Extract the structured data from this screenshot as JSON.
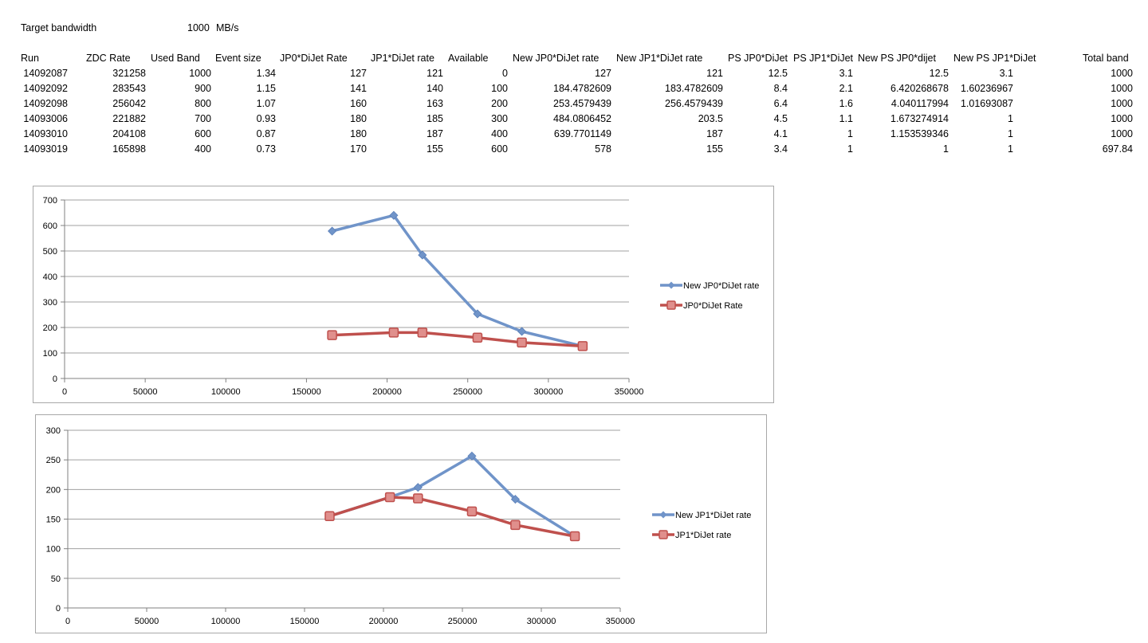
{
  "header": {
    "target_label": "Target bandwidth",
    "target_value": "1000",
    "target_unit": "MB/s"
  },
  "table": {
    "columns": [
      "Run",
      "ZDC Rate",
      "Used Band",
      "Event size",
      "JP0*DiJet Rate",
      "JP1*DiJet rate",
      "Available",
      "New JP0*DiJet rate",
      "New JP1*DiJet rate",
      "PS JP0*DiJet",
      "PS JP1*DiJet",
      "New PS JP0*dijet",
      "New PS JP1*DiJet",
      "Total band"
    ],
    "rows": [
      [
        "14092087",
        "321258",
        "1000",
        "1.34",
        "127",
        "121",
        "0",
        "127",
        "121",
        "12.5",
        "3.1",
        "12.5",
        "3.1",
        "1000"
      ],
      [
        "14092092",
        "283543",
        "900",
        "1.15",
        "141",
        "140",
        "100",
        "184.4782609",
        "183.4782609",
        "8.4",
        "2.1",
        "6.420268678",
        "1.60236967",
        "1000"
      ],
      [
        "14092098",
        "256042",
        "800",
        "1.07",
        "160",
        "163",
        "200",
        "253.4579439",
        "256.4579439",
        "6.4",
        "1.6",
        "4.040117994",
        "1.01693087",
        "1000"
      ],
      [
        "14093006",
        "221882",
        "700",
        "0.93",
        "180",
        "185",
        "300",
        "484.0806452",
        "203.5",
        "4.5",
        "1.1",
        "1.673274914",
        "1",
        "1000"
      ],
      [
        "14093010",
        "204108",
        "600",
        "0.87",
        "180",
        "187",
        "400",
        "639.7701149",
        "187",
        "4.1",
        "1",
        "1.153539346",
        "1",
        "1000"
      ],
      [
        "14093019",
        "165898",
        "400",
        "0.73",
        "170",
        "155",
        "600",
        "578",
        "155",
        "3.4",
        "1",
        "1",
        "1",
        "697.84"
      ]
    ]
  },
  "colors": {
    "blue": "#7094c9",
    "red": "#bf504d",
    "grid": "#a0a0a0"
  },
  "chart_data": [
    {
      "type": "line",
      "xlim": [
        0,
        350000
      ],
      "ylim": [
        0,
        700
      ],
      "xticks": [
        "0",
        "50000",
        "100000",
        "150000",
        "200000",
        "250000",
        "300000",
        "350000"
      ],
      "yticks": [
        "0",
        "100",
        "200",
        "300",
        "400",
        "500",
        "600",
        "700"
      ],
      "grid": "horizontal",
      "legend_position": "right",
      "series": [
        {
          "name": "New JP0*DiJet rate",
          "marker": "diamond",
          "color": "#7094c9",
          "points": [
            [
              321258,
              127
            ],
            [
              283543,
              184.4782609
            ],
            [
              256042,
              253.4579439
            ],
            [
              221882,
              484.0806452
            ],
            [
              204108,
              639.7701149
            ],
            [
              165898,
              578
            ]
          ]
        },
        {
          "name": "JP0*DiJet Rate",
          "marker": "square",
          "color": "#bf504d",
          "points": [
            [
              321258,
              127
            ],
            [
              283543,
              141
            ],
            [
              256042,
              160
            ],
            [
              221882,
              180
            ],
            [
              204108,
              180
            ],
            [
              165898,
              170
            ]
          ]
        }
      ]
    },
    {
      "type": "line",
      "xlim": [
        0,
        350000
      ],
      "ylim": [
        0,
        300
      ],
      "xticks": [
        "0",
        "50000",
        "100000",
        "150000",
        "200000",
        "250000",
        "300000",
        "350000"
      ],
      "yticks": [
        "0",
        "50",
        "100",
        "150",
        "200",
        "250",
        "300"
      ],
      "grid": "horizontal",
      "legend_position": "right",
      "series": [
        {
          "name": "New JP1*DiJet rate",
          "marker": "diamond",
          "color": "#7094c9",
          "points": [
            [
              321258,
              121
            ],
            [
              283543,
              183.4782609
            ],
            [
              256042,
              256.4579439
            ],
            [
              221882,
              203.5
            ],
            [
              204108,
              187
            ],
            [
              165898,
              155
            ]
          ]
        },
        {
          "name": "JP1*DiJet rate",
          "marker": "square",
          "color": "#bf504d",
          "points": [
            [
              321258,
              121
            ],
            [
              283543,
              140
            ],
            [
              256042,
              163
            ],
            [
              221882,
              185
            ],
            [
              204108,
              187
            ],
            [
              165898,
              155
            ]
          ]
        }
      ]
    }
  ]
}
